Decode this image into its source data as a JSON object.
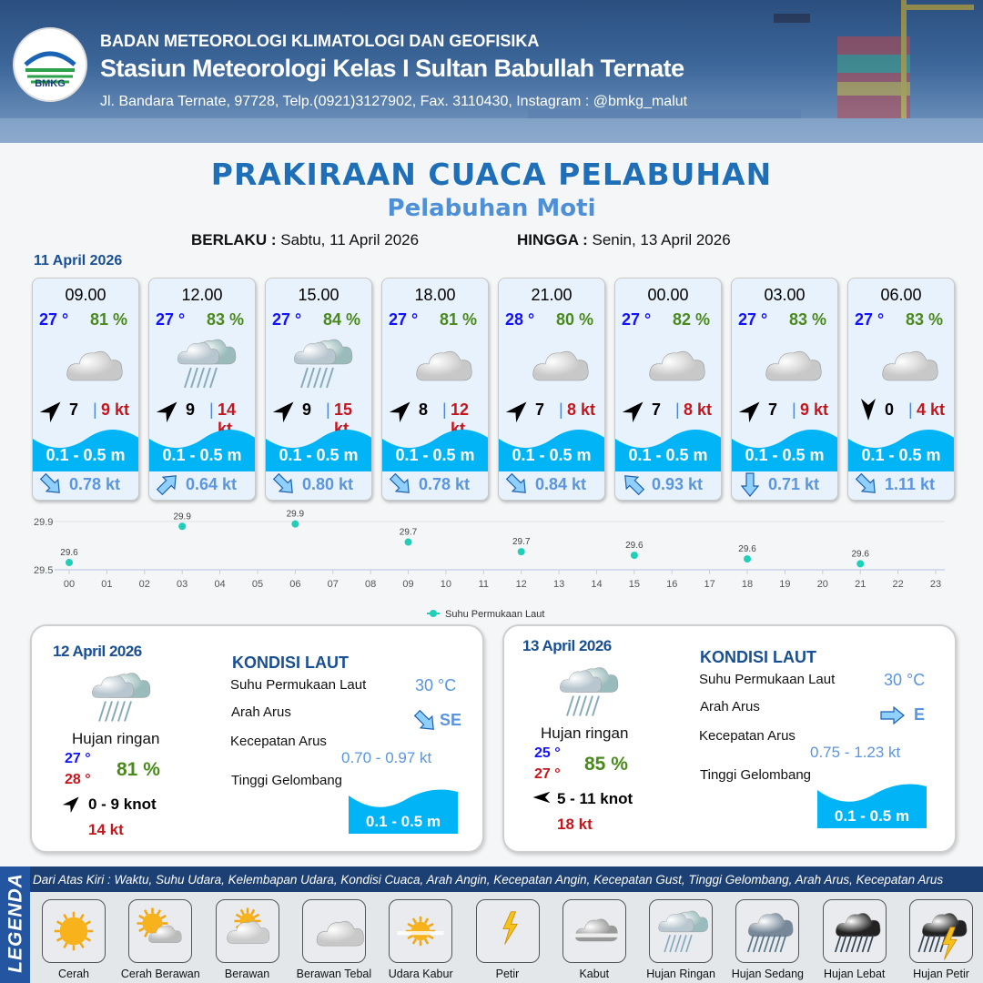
{
  "header": {
    "agency": "BADAN METEOROLOGI KLIMATOLOGI DAN GEOFISIKA",
    "station": "Stasiun Meteorologi Kelas I Sultan Babullah Ternate",
    "address": "Jl. Bandara Ternate, 97728, Telp.(0921)3127902, Fax. 3110430, Instagram : @bmkg_malut",
    "logo_text": "BMKG"
  },
  "title": "PRAKIRAAN CUACA PELABUHAN",
  "subtitle": "Pelabuhan Moti",
  "validity": {
    "from_label": "BERLAKU :",
    "from": "Sabtu, 11 April 2026",
    "to_label": "HINGGA :",
    "to": "Senin, 13 April 2026"
  },
  "day1": {
    "date": "11 April 2026",
    "cards": [
      {
        "time": "09.00",
        "temp": "27 °",
        "hum": "81 %",
        "icon": "berawan-tebal",
        "wind_dir": "SW",
        "wind": "7",
        "gust": "9 kt",
        "wave": "0.1 - 0.5 m",
        "cur_dir": "SE",
        "cur": "0.78 kt"
      },
      {
        "time": "12.00",
        "temp": "27 °",
        "hum": "83 %",
        "icon": "hujan-ringan",
        "wind_dir": "SW",
        "wind": "9",
        "gust": "14 kt",
        "wave": "0.1 - 0.5 m",
        "cur_dir": "NE",
        "cur": "0.64 kt"
      },
      {
        "time": "15.00",
        "temp": "27 °",
        "hum": "84 %",
        "icon": "hujan-ringan",
        "wind_dir": "SW",
        "wind": "9",
        "gust": "15 kt",
        "wave": "0.1 - 0.5 m",
        "cur_dir": "SE",
        "cur": "0.80 kt"
      },
      {
        "time": "18.00",
        "temp": "27 °",
        "hum": "81 %",
        "icon": "berawan-tebal",
        "wind_dir": "SW",
        "wind": "8",
        "gust": "12 kt",
        "wave": "0.1 - 0.5 m",
        "cur_dir": "SE",
        "cur": "0.78 kt"
      },
      {
        "time": "21.00",
        "temp": "28 °",
        "hum": "80 %",
        "icon": "berawan-tebal",
        "wind_dir": "SW",
        "wind": "7",
        "gust": "8 kt",
        "wave": "0.1 - 0.5 m",
        "cur_dir": "SE",
        "cur": "0.84 kt"
      },
      {
        "time": "00.00",
        "temp": "27 °",
        "hum": "82 %",
        "icon": "berawan-tebal",
        "wind_dir": "SW",
        "wind": "7",
        "gust": "8 kt",
        "wave": "0.1 - 0.5 m",
        "cur_dir": "NW",
        "cur": "0.93 kt"
      },
      {
        "time": "03.00",
        "temp": "27 °",
        "hum": "83 %",
        "icon": "berawan-tebal",
        "wind_dir": "SW",
        "wind": "7",
        "gust": "9 kt",
        "wave": "0.1 - 0.5 m",
        "cur_dir": "S",
        "cur": "0.71 kt"
      },
      {
        "time": "06.00",
        "temp": "27 °",
        "hum": "83 %",
        "icon": "berawan-tebal",
        "wind_dir": "N",
        "wind": "0",
        "gust": "4 kt",
        "wave": "0.1 - 0.5 m",
        "cur_dir": "SE",
        "cur": "1.11 kt"
      }
    ]
  },
  "chart_data": {
    "type": "scatter",
    "title": "",
    "xlabel": "",
    "ylabel": "",
    "x_ticks": [
      "00",
      "01",
      "02",
      "03",
      "04",
      "05",
      "06",
      "07",
      "08",
      "09",
      "10",
      "11",
      "12",
      "13",
      "14",
      "15",
      "16",
      "17",
      "18",
      "19",
      "20",
      "21",
      "22",
      "23"
    ],
    "y_ticks": [
      "29.5",
      "29.9"
    ],
    "ylim": [
      29.5,
      29.9
    ],
    "grid": true,
    "legend_placement": "bottom",
    "color": "#1fcfb8",
    "series": [
      {
        "name": "Suhu Permukaan Laut",
        "x": [
          0,
          3,
          6,
          9,
          12,
          15,
          18,
          21
        ],
        "y": [
          29.56,
          29.86,
          29.88,
          29.73,
          29.65,
          29.62,
          29.59,
          29.55
        ],
        "labels": [
          "29.6",
          "29.9",
          "29.9",
          "29.7",
          "29.7",
          "29.6",
          "29.6",
          "29.6"
        ]
      }
    ]
  },
  "days": [
    {
      "date": "12 April 2026",
      "icon": "hujan-ringan",
      "condition": "Hujan ringan",
      "temp_min": "27 °",
      "temp_max": "28 °",
      "hum": "81 %",
      "wind_dir": "SW",
      "wind": "0 - 9 knot",
      "gust": "14 kt",
      "sea_title": "KONDISI LAUT",
      "sst_label": "Suhu Permukaan Laut",
      "sst": "30 °C",
      "cur_dir_label": "Arah Arus",
      "cur_dir_icon": "SE",
      "cur_dir": "SE",
      "cur_speed_label": "Kecepatan Arus",
      "cur_speed": "0.70  - 0.97 kt",
      "wave_label": "Tinggi Gelombang",
      "wave": "0.1 - 0.5 m"
    },
    {
      "date": "13 April 2026",
      "icon": "hujan-ringan",
      "condition": "Hujan ringan",
      "temp_min": "25 °",
      "temp_max": "27 °",
      "hum": "85 %",
      "wind_dir": "E",
      "wind": "5 - 11 knot",
      "gust": "18 kt",
      "sea_title": "KONDISI LAUT",
      "sst_label": "Suhu Permukaan Laut",
      "sst": "30 °C",
      "cur_dir_label": "Arah Arus",
      "cur_dir_icon": "E",
      "cur_dir": "E",
      "cur_speed_label": "Kecepatan Arus",
      "cur_speed": "0.75  - 1.23 kt",
      "wave_label": "Tinggi Gelombang",
      "wave": "0.1 - 0.5 m"
    }
  ],
  "legend": {
    "title": "LEGENDA",
    "note": "Dari Atas Kiri : Waktu, Suhu Udara, Kelembapan Udara, Kondisi Cuaca, Arah Angin, Kecepatan Angin, Kecepatan Gust, Tinggi Gelombang, Arah Arus, Kecepatan Arus",
    "items": [
      {
        "label": "Cerah",
        "icon": "cerah"
      },
      {
        "label": "Cerah Berawan",
        "icon": "cerah-berawan"
      },
      {
        "label": "Berawan",
        "icon": "berawan"
      },
      {
        "label": "Berawan Tebal",
        "icon": "berawan-tebal"
      },
      {
        "label": "Udara Kabur",
        "icon": "udara-kabur"
      },
      {
        "label": "Petir",
        "icon": "petir"
      },
      {
        "label": "Kabut",
        "icon": "kabut"
      },
      {
        "label": "Hujan Ringan",
        "icon": "hujan-ringan"
      },
      {
        "label": "Hujan Sedang",
        "icon": "hujan-sedang"
      },
      {
        "label": "Hujan Lebat",
        "icon": "hujan-lebat"
      },
      {
        "label": "Hujan Petir",
        "icon": "hujan-petir"
      }
    ]
  },
  "colors": {
    "temp": "#1212ff",
    "humidity": "#4a8a1c",
    "gust": "#c4161c",
    "wave": "#00b4f5",
    "current": "#5a95df",
    "title": "#1e6fb8"
  }
}
